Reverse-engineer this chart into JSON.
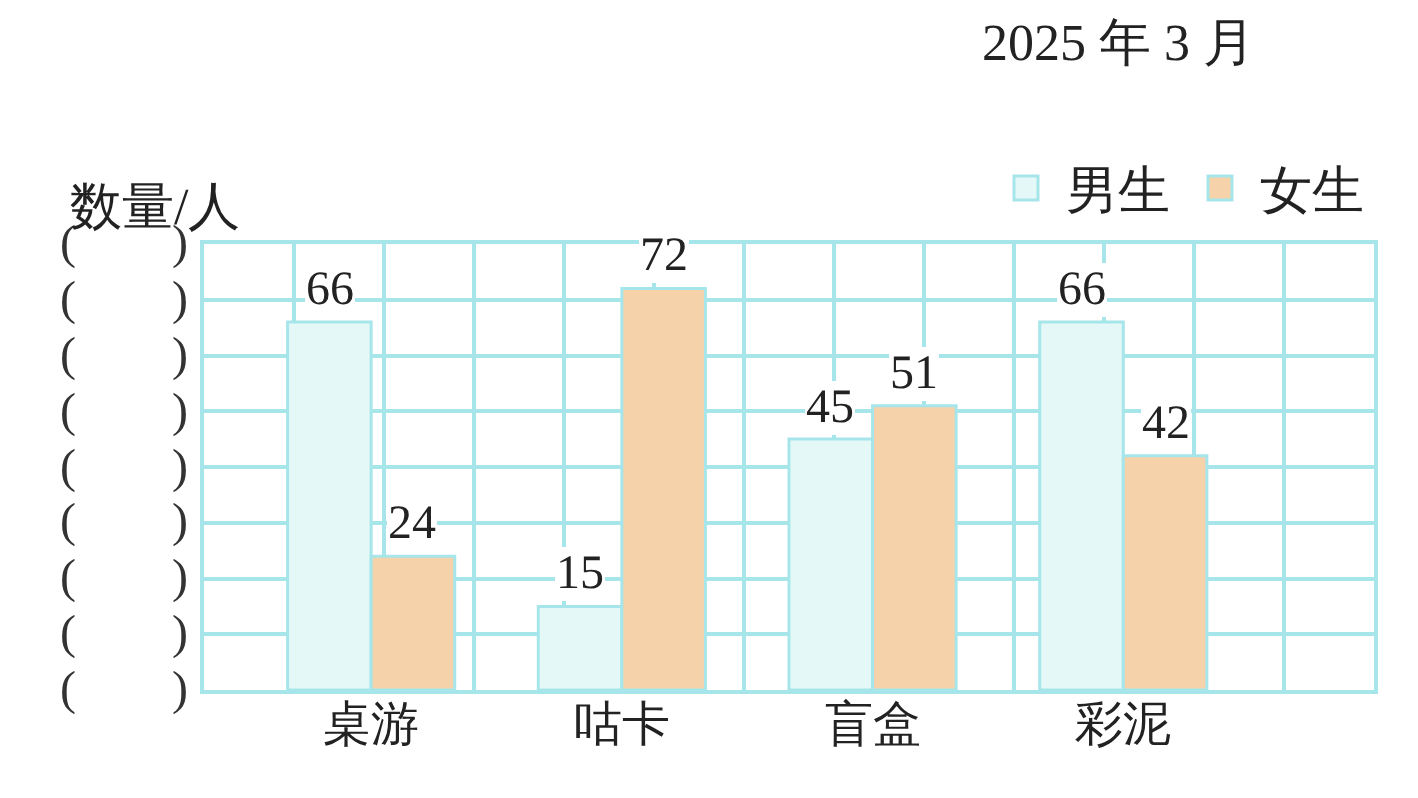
{
  "chart_data": {
    "type": "bar",
    "title": "2025 年 3 月",
    "ylabel": "数量/人",
    "categories": [
      "桌游",
      "咕卡",
      "盲盒",
      "彩泥"
    ],
    "series": [
      {
        "name": "男生",
        "color": "#e4f8f8",
        "values": [
          66,
          15,
          45,
          66
        ]
      },
      {
        "name": "女生",
        "color": "#f6d2ab",
        "values": [
          24,
          72,
          51,
          42
        ]
      }
    ],
    "ylim": [
      0,
      80
    ],
    "yticks": [
      {
        "value": 0,
        "label": null
      },
      {
        "value": 10,
        "label": null
      },
      {
        "value": 20,
        "label": null
      },
      {
        "value": 30,
        "label": null
      },
      {
        "value": 40,
        "label": null
      },
      {
        "value": 50,
        "label": null
      },
      {
        "value": 60,
        "label": null
      },
      {
        "value": 70,
        "label": null
      },
      {
        "value": 80,
        "label": null
      }
    ],
    "annotations": [
      "(　　)",
      "(　　)",
      "(　　)",
      "(　　)",
      "(　　)",
      "(　　)",
      "(　　)",
      "(　　)",
      "(　　)"
    ],
    "data_labels": true,
    "grid": true,
    "legend": "top right"
  }
}
